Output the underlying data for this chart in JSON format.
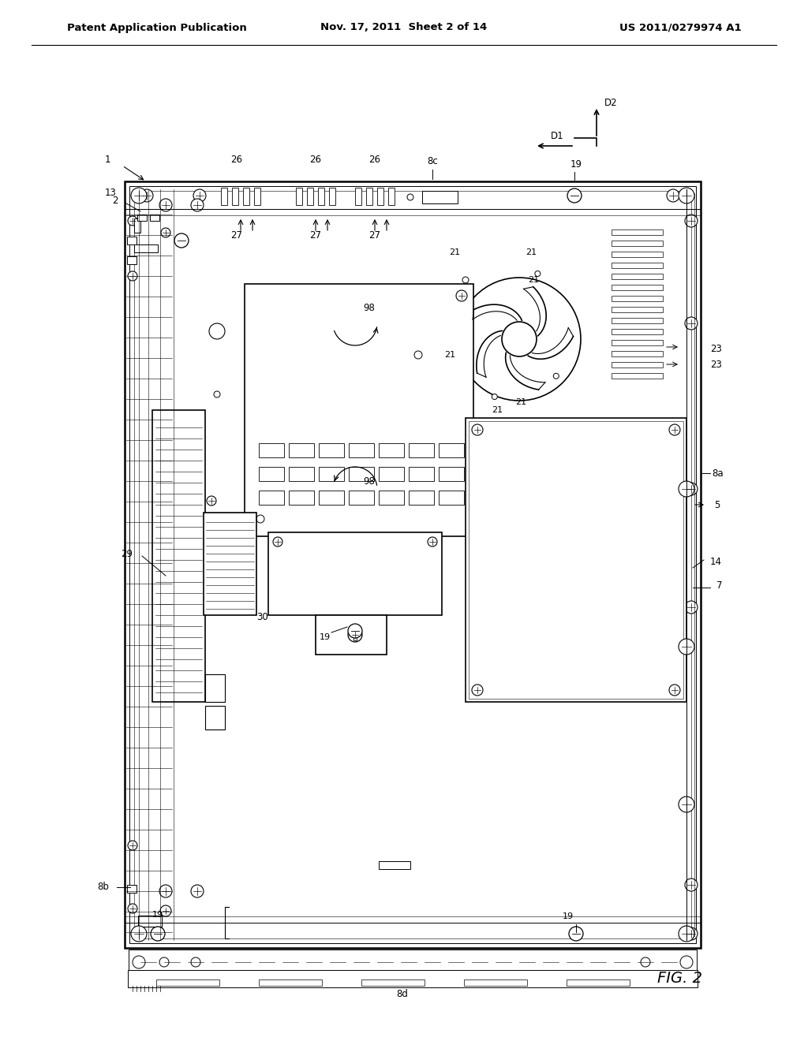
{
  "bg_color": "#ffffff",
  "title_left": "Patent Application Publication",
  "title_center": "Nov. 17, 2011  Sheet 2 of 14",
  "title_right": "US 2011/0279974 A1",
  "fig_label": "FIG. 2",
  "black": "#000000",
  "lw_main": 1.8,
  "lw_med": 1.2,
  "lw_thin": 0.7,
  "lw_hair": 0.4
}
